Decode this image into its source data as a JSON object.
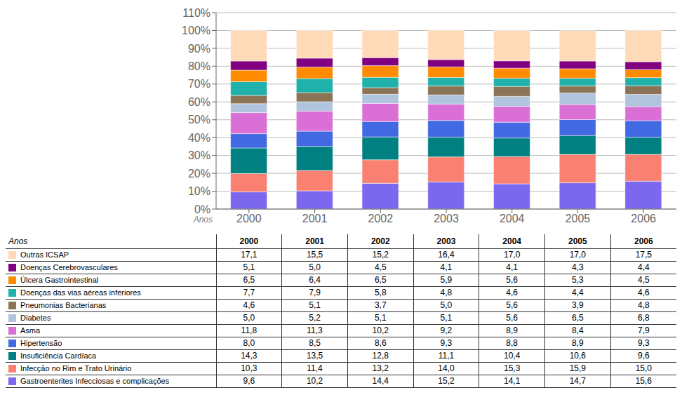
{
  "chart_data": {
    "type": "bar",
    "stacked": true,
    "grid": true,
    "legend": "lower left",
    "x_label": "Anos",
    "categories": [
      "2000",
      "2001",
      "2002",
      "2003",
      "2004",
      "2005",
      "2006"
    ],
    "ylim": [
      0,
      110
    ],
    "yticks": [
      {
        "value": 0,
        "label": "0%"
      },
      {
        "value": 10,
        "label": "10%"
      },
      {
        "value": 20,
        "label": "20%"
      },
      {
        "value": 30,
        "label": "30%"
      },
      {
        "value": 40,
        "label": "40%"
      },
      {
        "value": 50,
        "label": "50%"
      },
      {
        "value": 60,
        "label": "60%"
      },
      {
        "value": 70,
        "label": "70%"
      },
      {
        "value": 80,
        "label": "80%"
      },
      {
        "value": 90,
        "label": "90%"
      },
      {
        "value": 100,
        "label": "100%"
      },
      {
        "value": 110,
        "label": "110%"
      }
    ],
    "series": [
      {
        "name": "Gastroenterites Infecciosas e complicações",
        "color": "#7B68EE",
        "values": [
          9.6,
          10.2,
          14.4,
          15.2,
          14.1,
          14.7,
          15.6
        ],
        "value_labels": [
          "9,6",
          "10,2",
          "14,4",
          "15,2",
          "14,1",
          "14,7",
          "15,6"
        ]
      },
      {
        "name": "Infecção no Rim e Trato Urinário",
        "color": "#FA8072",
        "values": [
          10.3,
          11.4,
          13.2,
          14.0,
          15.3,
          15.9,
          15.0
        ],
        "value_labels": [
          "10,3",
          "11,4",
          "13,2",
          "14,0",
          "15,3",
          "15,9",
          "15,0"
        ]
      },
      {
        "name": "Insuficiência Cardíaca",
        "color": "#008080",
        "values": [
          14.3,
          13.5,
          12.8,
          11.1,
          10.4,
          10.6,
          9.6
        ],
        "value_labels": [
          "14,3",
          "13,5",
          "12,8",
          "11,1",
          "10,4",
          "10,6",
          "9,6"
        ]
      },
      {
        "name": "Hipertensão",
        "color": "#4169E1",
        "values": [
          8.0,
          8.5,
          8.6,
          9.3,
          8.8,
          8.9,
          9.3
        ],
        "value_labels": [
          "8,0",
          "8,5",
          "8,6",
          "9,3",
          "8,8",
          "8,9",
          "9,3"
        ]
      },
      {
        "name": "Asma",
        "color": "#DA70D6",
        "values": [
          11.8,
          11.3,
          10.2,
          9.2,
          8.9,
          8.4,
          7.9
        ],
        "value_labels": [
          "11,8",
          "11,3",
          "10,2",
          "9,2",
          "8,9",
          "8,4",
          "7,9"
        ]
      },
      {
        "name": "Diabetes",
        "color": "#B0C4DE",
        "values": [
          5.0,
          5.2,
          5.1,
          5.1,
          5.6,
          6.5,
          6.8
        ],
        "value_labels": [
          "5,0",
          "5,2",
          "5,1",
          "5,1",
          "5,6",
          "6,5",
          "6,8"
        ]
      },
      {
        "name": "Pneumonias Bacterianas",
        "color": "#8B7355",
        "values": [
          4.6,
          5.1,
          3.7,
          5.0,
          5.6,
          3.9,
          4.8
        ],
        "value_labels": [
          "4,6",
          "5,1",
          "3,7",
          "5,0",
          "5,6",
          "3,9",
          "4,8"
        ]
      },
      {
        "name": "Doenças das vias aéreas inferiores",
        "color": "#20B2AA",
        "values": [
          7.7,
          7.9,
          5.8,
          4.8,
          4.6,
          4.4,
          4.6
        ],
        "value_labels": [
          "7,7",
          "7,9",
          "5,8",
          "4,8",
          "4,6",
          "4,4",
          "4,6"
        ]
      },
      {
        "name": "Úlcera Gastrointestinal",
        "color": "#FF8C00",
        "values": [
          6.5,
          6.4,
          6.5,
          5.9,
          5.6,
          5.3,
          4.5
        ],
        "value_labels": [
          "6,5",
          "6,4",
          "6,5",
          "5,9",
          "5,6",
          "5,3",
          "4,5"
        ]
      },
      {
        "name": "Doenças Cerebrovasculares",
        "color": "#800080",
        "values": [
          5.1,
          5.0,
          4.5,
          4.1,
          4.1,
          4.3,
          4.4
        ],
        "value_labels": [
          "5,1",
          "5,0",
          "4,5",
          "4,1",
          "4,1",
          "4,3",
          "4,4"
        ]
      },
      {
        "name": "Outras ICSAP",
        "color": "#FFDAB9",
        "values": [
          17.1,
          15.5,
          15.2,
          16.4,
          17.0,
          17.0,
          17.5
        ],
        "value_labels": [
          "17,1",
          "15,5",
          "15,2",
          "16,4",
          "17,0",
          "17,0",
          "17,5"
        ]
      }
    ]
  }
}
